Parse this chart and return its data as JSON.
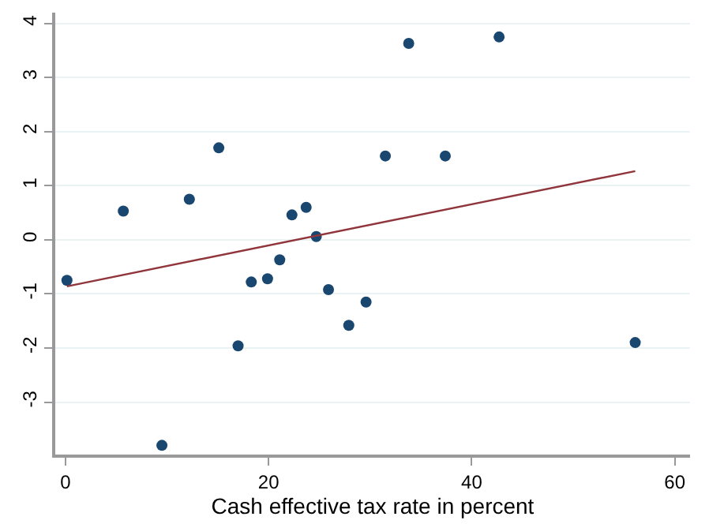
{
  "chart_data": {
    "type": "scatter",
    "xlabel": "Cash effective tax rate in percent",
    "xlim": [
      -1,
      61.5
    ],
    "xticks": [
      0,
      20,
      40,
      60
    ],
    "ylim": [
      -3.97,
      4.2
    ],
    "yticks": [
      -3,
      -2,
      -1,
      0,
      1,
      2,
      3,
      4
    ],
    "grid": "y",
    "series": [
      {
        "marker": "circle",
        "color": "#1a476f",
        "x": [
          0.15,
          5.7,
          12.2,
          15.1,
          9.5,
          17.0,
          18.3,
          19.9,
          21.1,
          22.3,
          23.7,
          24.7,
          25.9,
          27.9,
          29.6,
          31.5,
          33.8,
          37.4,
          42.7,
          56.1
        ],
        "values": [
          -0.75,
          0.53,
          0.75,
          1.7,
          -3.8,
          -1.96,
          -0.78,
          -0.72,
          -0.37,
          0.46,
          0.6,
          0.06,
          -0.92,
          -1.58,
          -1.15,
          1.55,
          3.63,
          1.55,
          3.75,
          -1.9
        ]
      },
      {
        "type": "line",
        "marker": "none",
        "color": "#90353b",
        "x": [
          0.15,
          56.1
        ],
        "values": [
          -0.86,
          1.27
        ]
      }
    ]
  }
}
